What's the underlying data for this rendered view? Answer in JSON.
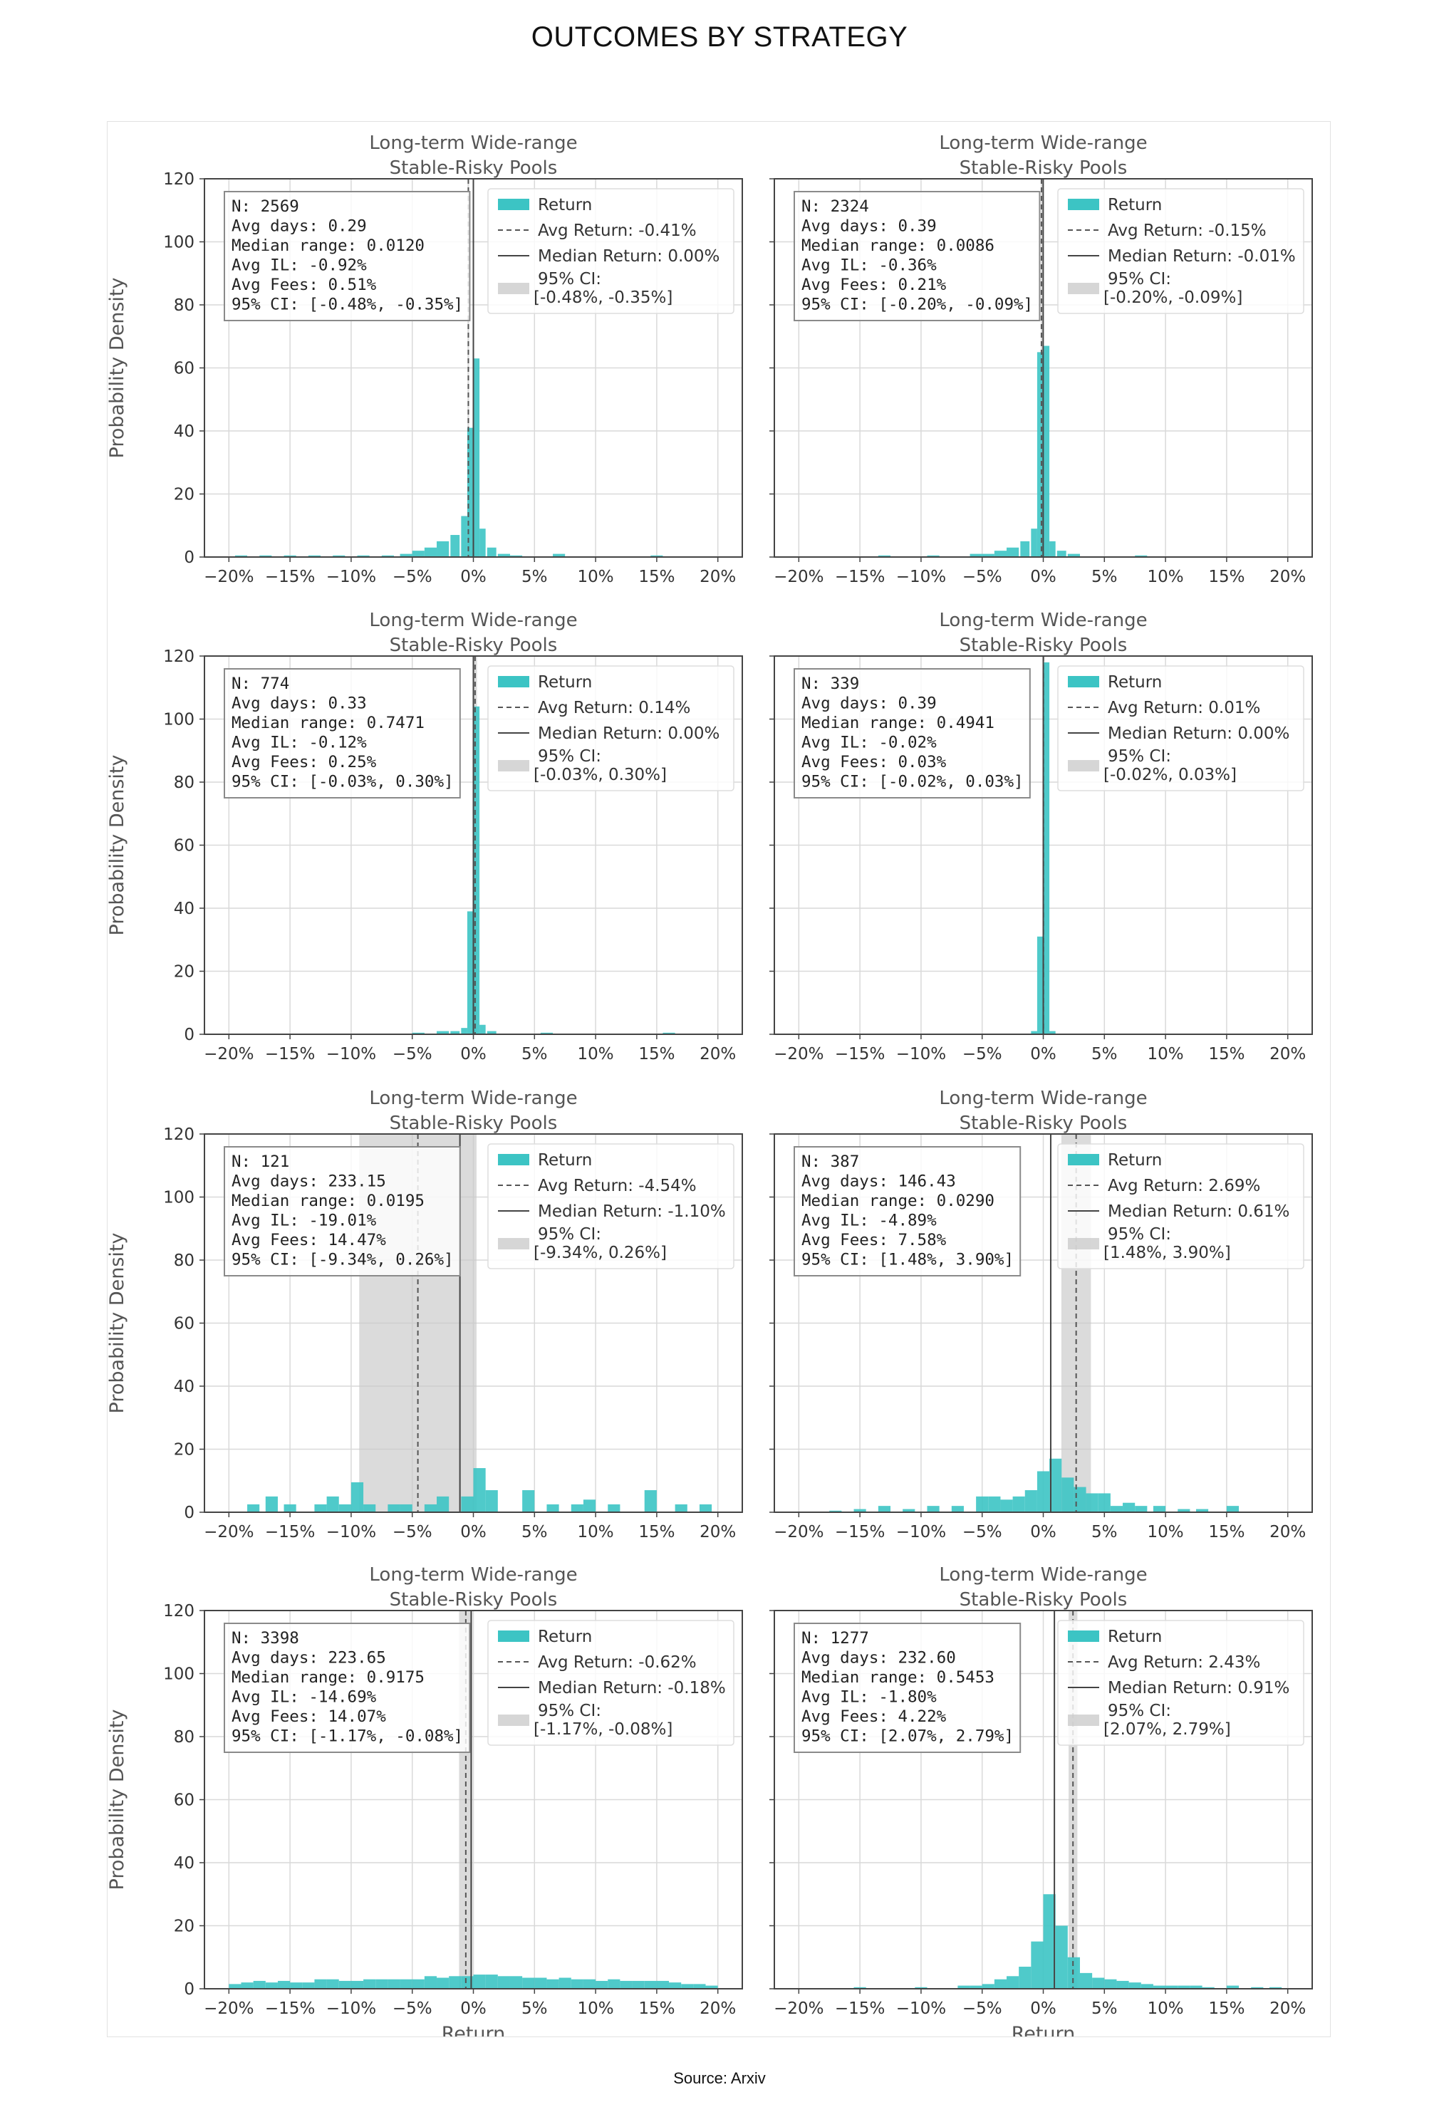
{
  "page": {
    "title": "OUTCOMES BY STRATEGY",
    "source": "Source: Arxiv"
  },
  "colors": {
    "bar": "#3cc4c4",
    "ci_band": "#c8c8c8",
    "mean_line": "#555555",
    "median_line": "#444444",
    "grid": "#d9d9d9",
    "axis": "#444444"
  },
  "chart_data": [
    {
      "type": "bar",
      "title": "Long-term Wide-range\nStable-Risky Pools",
      "ylabel": "Probability Density",
      "xlabel": "",
      "xlim": [
        -22,
        22
      ],
      "ylim": [
        0,
        120
      ],
      "xticks": [
        "−20%",
        "−15%",
        "−10%",
        "−5%",
        "0%",
        "5%",
        "10%",
        "15%",
        "20%"
      ],
      "yticks": [
        "0",
        "20",
        "40",
        "60",
        "80",
        "100",
        "120"
      ],
      "stats": [
        "N: 2569",
        "Avg days: 0.29",
        "Median range: 0.0120",
        "Avg IL: -0.92%",
        "Avg Fees: 0.51%",
        "95% CI: [-0.48%, -0.35%]"
      ],
      "legend": {
        "return": "Return",
        "avg": "Avg Return: -0.41%",
        "median": "Median Return: 0.00%",
        "ci": [
          "95% CI:",
          "[-0.48%, -0.35%]"
        ]
      },
      "legend_position": "top-right",
      "avg_return": -0.41,
      "median_return": 0.0,
      "ci": [
        -0.48,
        -0.35
      ],
      "bins": [
        {
          "x": -19,
          "y": 0.5
        },
        {
          "x": -17,
          "y": 0.5
        },
        {
          "x": -15,
          "y": 0.5
        },
        {
          "x": -13,
          "y": 0.5
        },
        {
          "x": -11,
          "y": 0.5
        },
        {
          "x": -9,
          "y": 0.5
        },
        {
          "x": -7,
          "y": 0.5
        },
        {
          "x": -5.5,
          "y": 1
        },
        {
          "x": -4.5,
          "y": 2
        },
        {
          "x": -3.5,
          "y": 3
        },
        {
          "x": -2.5,
          "y": 5
        },
        {
          "x": -1.5,
          "y": 7
        },
        {
          "x": -0.75,
          "y": 13
        },
        {
          "x": -0.25,
          "y": 41
        },
        {
          "x": 0.25,
          "y": 63
        },
        {
          "x": 0.75,
          "y": 9
        },
        {
          "x": 1.5,
          "y": 3
        },
        {
          "x": 2.5,
          "y": 1
        },
        {
          "x": 3.5,
          "y": 0.5
        },
        {
          "x": 7,
          "y": 1
        },
        {
          "x": 15,
          "y": 0.5
        }
      ]
    },
    {
      "type": "bar",
      "title": "Long-term Wide-range\nStable-Risky Pools",
      "ylabel": "",
      "xlabel": "",
      "xlim": [
        -22,
        22
      ],
      "ylim": [
        0,
        120
      ],
      "xticks": [
        "−20%",
        "−15%",
        "−10%",
        "−5%",
        "0%",
        "5%",
        "10%",
        "15%",
        "20%"
      ],
      "yticks": [],
      "stats": [
        "N: 2324",
        "Avg days: 0.39",
        "Median range: 0.0086",
        "Avg IL: -0.36%",
        "Avg Fees: 0.21%",
        "95% CI: [-0.20%, -0.09%]"
      ],
      "legend": {
        "return": "Return",
        "avg": "Avg Return: -0.15%",
        "median": "Median Return: -0.01%",
        "ci": [
          "95% CI:",
          "[-0.20%, -0.09%]"
        ]
      },
      "legend_position": "top-right",
      "avg_return": -0.15,
      "median_return": -0.01,
      "ci": [
        -0.2,
        -0.09
      ],
      "bins": [
        {
          "x": -13,
          "y": 0.5
        },
        {
          "x": -9,
          "y": 0.5
        },
        {
          "x": -5.5,
          "y": 1
        },
        {
          "x": -4.5,
          "y": 1
        },
        {
          "x": -3.5,
          "y": 2
        },
        {
          "x": -2.5,
          "y": 3
        },
        {
          "x": -1.5,
          "y": 5
        },
        {
          "x": -0.75,
          "y": 9
        },
        {
          "x": -0.25,
          "y": 65
        },
        {
          "x": 0.25,
          "y": 67
        },
        {
          "x": 0.75,
          "y": 5
        },
        {
          "x": 1.5,
          "y": 2
        },
        {
          "x": 2.5,
          "y": 1
        },
        {
          "x": 8,
          "y": 0.5
        }
      ]
    },
    {
      "type": "bar",
      "title": "Long-term Wide-range\nStable-Risky Pools",
      "ylabel": "Probability Density",
      "xlabel": "",
      "xlim": [
        -22,
        22
      ],
      "ylim": [
        0,
        120
      ],
      "xticks": [
        "−20%",
        "−15%",
        "−10%",
        "−5%",
        "0%",
        "5%",
        "10%",
        "15%",
        "20%"
      ],
      "yticks": [
        "0",
        "20",
        "40",
        "60",
        "80",
        "100",
        "120"
      ],
      "stats": [
        "N: 774",
        "Avg days: 0.33",
        "Median range: 0.7471",
        "Avg IL: -0.12%",
        "Avg Fees: 0.25%",
        "95% CI: [-0.03%, 0.30%]"
      ],
      "legend": {
        "return": "Return",
        "avg": "Avg Return: 0.14%",
        "median": "Median Return: 0.00%",
        "ci": [
          "95% CI:",
          "[-0.03%, 0.30%]"
        ]
      },
      "legend_position": "top-right",
      "avg_return": 0.14,
      "median_return": 0.0,
      "ci": [
        -0.03,
        0.3
      ],
      "bins": [
        {
          "x": -4.5,
          "y": 0.5
        },
        {
          "x": -2.5,
          "y": 1
        },
        {
          "x": -1.5,
          "y": 1
        },
        {
          "x": -0.75,
          "y": 2
        },
        {
          "x": -0.25,
          "y": 39
        },
        {
          "x": 0.25,
          "y": 104
        },
        {
          "x": 0.75,
          "y": 3
        },
        {
          "x": 1.5,
          "y": 1
        },
        {
          "x": 6,
          "y": 0.5
        },
        {
          "x": 16,
          "y": 0.5
        }
      ]
    },
    {
      "type": "bar",
      "title": "Long-term Wide-range\nStable-Risky Pools",
      "ylabel": "",
      "xlabel": "",
      "xlim": [
        -22,
        22
      ],
      "ylim": [
        0,
        120
      ],
      "xticks": [
        "−20%",
        "−15%",
        "−10%",
        "−5%",
        "0%",
        "5%",
        "10%",
        "15%",
        "20%"
      ],
      "yticks": [],
      "stats": [
        "N: 339",
        "Avg days: 0.39",
        "Median range: 0.4941",
        "Avg IL: -0.02%",
        "Avg Fees: 0.03%",
        "95% CI: [-0.02%, 0.03%]"
      ],
      "legend": {
        "return": "Return",
        "avg": "Avg Return: 0.01%",
        "median": "Median Return: 0.00%",
        "ci": [
          "95% CI:",
          "[-0.02%, 0.03%]"
        ]
      },
      "legend_position": "top-right",
      "avg_return": 0.01,
      "median_return": 0.0,
      "ci": [
        -0.02,
        0.03
      ],
      "bins": [
        {
          "x": -0.75,
          "y": 1
        },
        {
          "x": -0.25,
          "y": 31
        },
        {
          "x": 0.25,
          "y": 118
        },
        {
          "x": 0.75,
          "y": 1
        }
      ]
    },
    {
      "type": "bar",
      "title": "Long-term Wide-range\nStable-Risky Pools",
      "ylabel": "Probability Density",
      "xlabel": "",
      "xlim": [
        -22,
        22
      ],
      "ylim": [
        0,
        120
      ],
      "xticks": [
        "−20%",
        "−15%",
        "−10%",
        "−5%",
        "0%",
        "5%",
        "10%",
        "15%",
        "20%"
      ],
      "yticks": [
        "0",
        "20",
        "40",
        "60",
        "80",
        "100",
        "120"
      ],
      "stats": [
        "N: 121",
        "Avg days: 233.15",
        "Median range: 0.0195",
        "Avg IL: -19.01%",
        "Avg Fees: 14.47%",
        "95% CI: [-9.34%, 0.26%]"
      ],
      "legend": {
        "return": "Return",
        "avg": "Avg Return: -4.54%",
        "median": "Median Return: -1.10%",
        "ci": [
          "95% CI:",
          "[-9.34%, 0.26%]"
        ]
      },
      "legend_position": "top-right",
      "avg_return": -4.54,
      "median_return": -1.1,
      "ci": [
        -9.34,
        0.26
      ],
      "bins": [
        {
          "x": -18,
          "y": 2.5
        },
        {
          "x": -16.5,
          "y": 5
        },
        {
          "x": -15,
          "y": 2.5
        },
        {
          "x": -12.5,
          "y": 2.5
        },
        {
          "x": -11.5,
          "y": 5
        },
        {
          "x": -10.5,
          "y": 2.5
        },
        {
          "x": -9.5,
          "y": 9.5
        },
        {
          "x": -8.5,
          "y": 2.5
        },
        {
          "x": -6.5,
          "y": 2.5
        },
        {
          "x": -5.5,
          "y": 2.5
        },
        {
          "x": -3.5,
          "y": 2.5
        },
        {
          "x": -2.5,
          "y": 5
        },
        {
          "x": -0.5,
          "y": 5
        },
        {
          "x": 0.5,
          "y": 14
        },
        {
          "x": 1.5,
          "y": 7
        },
        {
          "x": 4.5,
          "y": 7
        },
        {
          "x": 6.5,
          "y": 2.5
        },
        {
          "x": 8.5,
          "y": 2.5
        },
        {
          "x": 9.5,
          "y": 4
        },
        {
          "x": 11.5,
          "y": 2.5
        },
        {
          "x": 14.5,
          "y": 7
        },
        {
          "x": 17,
          "y": 2.5
        },
        {
          "x": 19,
          "y": 2.5
        }
      ]
    },
    {
      "type": "bar",
      "title": "Long-term Wide-range\nStable-Risky Pools",
      "ylabel": "",
      "xlabel": "",
      "xlim": [
        -22,
        22
      ],
      "ylim": [
        0,
        120
      ],
      "xticks": [
        "−20%",
        "−15%",
        "−10%",
        "−5%",
        "0%",
        "5%",
        "10%",
        "15%",
        "20%"
      ],
      "yticks": [],
      "stats": [
        "N: 387",
        "Avg days: 146.43",
        "Median range: 0.0290",
        "Avg IL: -4.89%",
        "Avg Fees: 7.58%",
        "95% CI: [1.48%, 3.90%]"
      ],
      "legend": {
        "return": "Return",
        "avg": "Avg Return: 2.69%",
        "median": "Median Return: 0.61%",
        "ci": [
          "95% CI:",
          "[1.48%, 3.90%]"
        ]
      },
      "legend_position": "top-right",
      "avg_return": 2.69,
      "median_return": 0.61,
      "ci": [
        1.48,
        3.9
      ],
      "bins": [
        {
          "x": -17,
          "y": 0.5
        },
        {
          "x": -15,
          "y": 1
        },
        {
          "x": -13,
          "y": 2
        },
        {
          "x": -11,
          "y": 1
        },
        {
          "x": -9,
          "y": 2
        },
        {
          "x": -7,
          "y": 2
        },
        {
          "x": -5,
          "y": 5
        },
        {
          "x": -4,
          "y": 5
        },
        {
          "x": -3,
          "y": 4
        },
        {
          "x": -2,
          "y": 5
        },
        {
          "x": -1,
          "y": 7
        },
        {
          "x": 0,
          "y": 13
        },
        {
          "x": 1,
          "y": 17
        },
        {
          "x": 2,
          "y": 11
        },
        {
          "x": 3,
          "y": 8
        },
        {
          "x": 4,
          "y": 6
        },
        {
          "x": 5,
          "y": 6
        },
        {
          "x": 6,
          "y": 2
        },
        {
          "x": 7,
          "y": 3
        },
        {
          "x": 8,
          "y": 2
        },
        {
          "x": 9.5,
          "y": 2
        },
        {
          "x": 11.5,
          "y": 1
        },
        {
          "x": 13,
          "y": 1
        },
        {
          "x": 15.5,
          "y": 2
        }
      ]
    },
    {
      "type": "bar",
      "title": "Long-term Wide-range\nStable-Risky Pools",
      "ylabel": "Probability Density",
      "xlabel": "Return",
      "xlim": [
        -22,
        22
      ],
      "ylim": [
        0,
        120
      ],
      "xticks": [
        "−20%",
        "−15%",
        "−10%",
        "−5%",
        "0%",
        "5%",
        "10%",
        "15%",
        "20%"
      ],
      "yticks": [
        "0",
        "20",
        "40",
        "60",
        "80",
        "100",
        "120"
      ],
      "stats": [
        "N: 3398",
        "Avg days: 223.65",
        "Median range: 0.9175",
        "Avg IL: -14.69%",
        "Avg Fees: 14.07%",
        "95% CI: [-1.17%, -0.08%]"
      ],
      "legend": {
        "return": "Return",
        "avg": "Avg Return: -0.62%",
        "median": "Median Return: -0.18%",
        "ci": [
          "95% CI:",
          "[-1.17%, -0.08%]"
        ]
      },
      "legend_position": "top-right",
      "avg_return": -0.62,
      "median_return": -0.18,
      "ci": [
        -1.17,
        -0.08
      ],
      "bins": [
        {
          "x": -19.5,
          "y": 1.5
        },
        {
          "x": -18.5,
          "y": 2
        },
        {
          "x": -17.5,
          "y": 2.5
        },
        {
          "x": -16.5,
          "y": 2
        },
        {
          "x": -15.5,
          "y": 2.5
        },
        {
          "x": -14.5,
          "y": 2
        },
        {
          "x": -13.5,
          "y": 2
        },
        {
          "x": -12.5,
          "y": 3
        },
        {
          "x": -11.5,
          "y": 3
        },
        {
          "x": -10.5,
          "y": 2.5
        },
        {
          "x": -9.5,
          "y": 2.5
        },
        {
          "x": -8.5,
          "y": 3
        },
        {
          "x": -7.5,
          "y": 3
        },
        {
          "x": -6.5,
          "y": 3
        },
        {
          "x": -5.5,
          "y": 3
        },
        {
          "x": -4.5,
          "y": 3
        },
        {
          "x": -3.5,
          "y": 4
        },
        {
          "x": -2.5,
          "y": 3.5
        },
        {
          "x": -1.5,
          "y": 4
        },
        {
          "x": -0.5,
          "y": 4
        },
        {
          "x": 0.5,
          "y": 4.5
        },
        {
          "x": 1.5,
          "y": 4.5
        },
        {
          "x": 2.5,
          "y": 4
        },
        {
          "x": 3.5,
          "y": 4
        },
        {
          "x": 4.5,
          "y": 3.5
        },
        {
          "x": 5.5,
          "y": 3.5
        },
        {
          "x": 6.5,
          "y": 3
        },
        {
          "x": 7.5,
          "y": 3.5
        },
        {
          "x": 8.5,
          "y": 3
        },
        {
          "x": 9.5,
          "y": 3
        },
        {
          "x": 10.5,
          "y": 2.5
        },
        {
          "x": 11.5,
          "y": 3
        },
        {
          "x": 12.5,
          "y": 2.5
        },
        {
          "x": 13.5,
          "y": 2.5
        },
        {
          "x": 14.5,
          "y": 2.5
        },
        {
          "x": 15.5,
          "y": 2.5
        },
        {
          "x": 16.5,
          "y": 2
        },
        {
          "x": 17.5,
          "y": 1.5
        },
        {
          "x": 18.5,
          "y": 1.5
        },
        {
          "x": 19.5,
          "y": 1
        }
      ]
    },
    {
      "type": "bar",
      "title": "Long-term Wide-range\nStable-Risky Pools",
      "ylabel": "",
      "xlabel": "Return",
      "xlim": [
        -22,
        22
      ],
      "ylim": [
        0,
        120
      ],
      "xticks": [
        "−20%",
        "−15%",
        "−10%",
        "−5%",
        "0%",
        "5%",
        "10%",
        "15%",
        "20%"
      ],
      "yticks": [],
      "stats": [
        "N: 1277",
        "Avg days: 232.60",
        "Median range: 0.5453",
        "Avg IL: -1.80%",
        "Avg Fees: 4.22%",
        "95% CI: [2.07%, 2.79%]"
      ],
      "legend": {
        "return": "Return",
        "avg": "Avg Return: 2.43%",
        "median": "Median Return: 0.91%",
        "ci": [
          "95% CI:",
          "[2.07%, 2.79%]"
        ]
      },
      "legend_position": "top-right",
      "avg_return": 2.43,
      "median_return": 0.91,
      "ci": [
        2.07,
        2.79
      ],
      "bins": [
        {
          "x": -15,
          "y": 0.5
        },
        {
          "x": -10,
          "y": 0.5
        },
        {
          "x": -6.5,
          "y": 1
        },
        {
          "x": -5.5,
          "y": 1
        },
        {
          "x": -4.5,
          "y": 1.5
        },
        {
          "x": -3.5,
          "y": 3
        },
        {
          "x": -2.5,
          "y": 4
        },
        {
          "x": -1.5,
          "y": 7
        },
        {
          "x": -0.5,
          "y": 15
        },
        {
          "x": 0.5,
          "y": 30
        },
        {
          "x": 1.5,
          "y": 20
        },
        {
          "x": 2.5,
          "y": 10
        },
        {
          "x": 3.5,
          "y": 5
        },
        {
          "x": 4.5,
          "y": 3.5
        },
        {
          "x": 5.5,
          "y": 3
        },
        {
          "x": 6.5,
          "y": 2.5
        },
        {
          "x": 7.5,
          "y": 2
        },
        {
          "x": 8.5,
          "y": 1.5
        },
        {
          "x": 9.5,
          "y": 1
        },
        {
          "x": 10.5,
          "y": 1
        },
        {
          "x": 11.5,
          "y": 1
        },
        {
          "x": 12.5,
          "y": 1
        },
        {
          "x": 13.5,
          "y": 0.5
        },
        {
          "x": 15.5,
          "y": 1
        },
        {
          "x": 17.5,
          "y": 0.5
        },
        {
          "x": 19,
          "y": 0.5
        }
      ]
    }
  ]
}
